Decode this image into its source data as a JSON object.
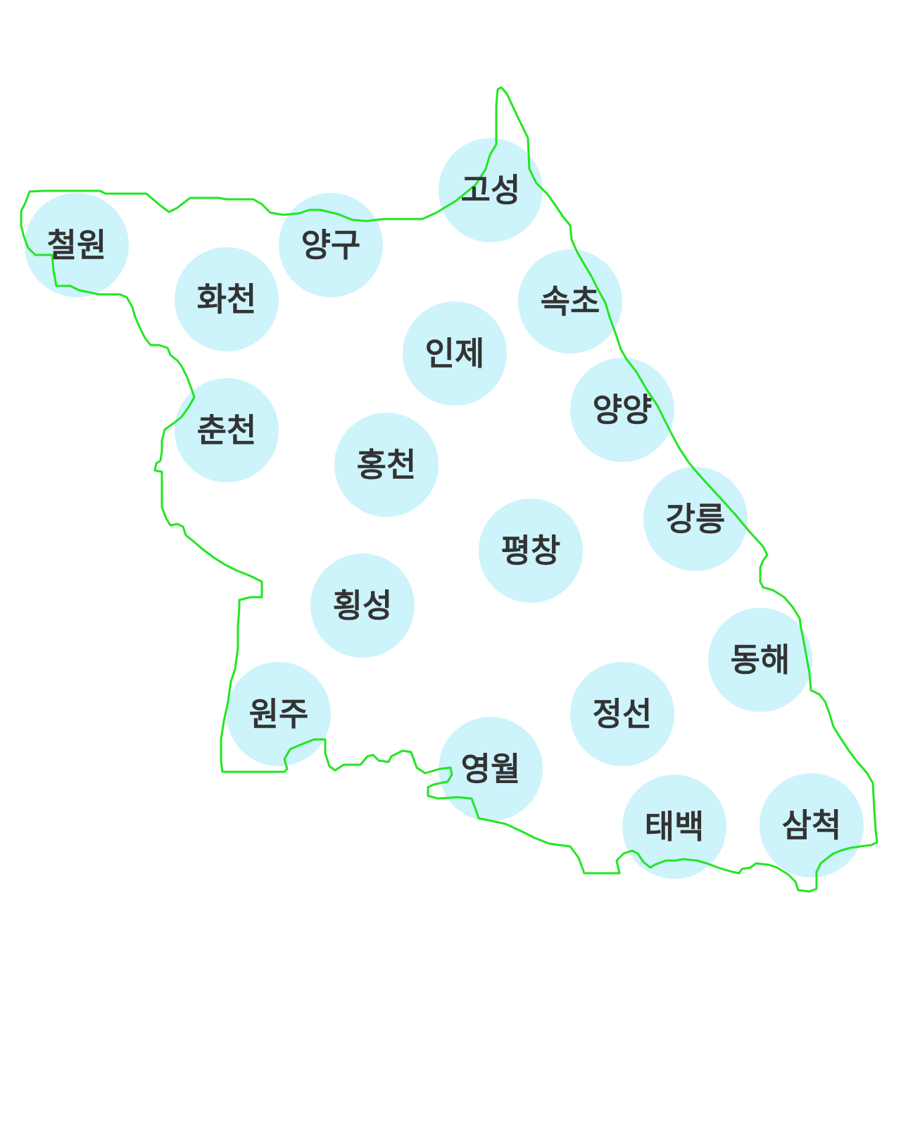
{
  "map": {
    "border_color": "#22e622",
    "circle_color": "#cdf3fb",
    "label_color": "#333333",
    "regions": [
      {
        "id": "cheorwon",
        "label": "철원"
      },
      {
        "id": "yanggu",
        "label": "양구"
      },
      {
        "id": "goseong",
        "label": "고성"
      },
      {
        "id": "hwacheon",
        "label": "화천"
      },
      {
        "id": "sokcho",
        "label": "속초"
      },
      {
        "id": "inje",
        "label": "인제"
      },
      {
        "id": "chuncheon",
        "label": "춘천"
      },
      {
        "id": "yangyang",
        "label": "양양"
      },
      {
        "id": "hongcheon",
        "label": "홍천"
      },
      {
        "id": "gangneung",
        "label": "강릉"
      },
      {
        "id": "pyeongchang",
        "label": "평창"
      },
      {
        "id": "hoengseong",
        "label": "횡성"
      },
      {
        "id": "donghae",
        "label": "동해"
      },
      {
        "id": "wonju",
        "label": "원주"
      },
      {
        "id": "jeongseon",
        "label": "정선"
      },
      {
        "id": "yeongwol",
        "label": "영월"
      },
      {
        "id": "taebaek",
        "label": "태백"
      },
      {
        "id": "samcheok",
        "label": "삼척"
      }
    ]
  }
}
